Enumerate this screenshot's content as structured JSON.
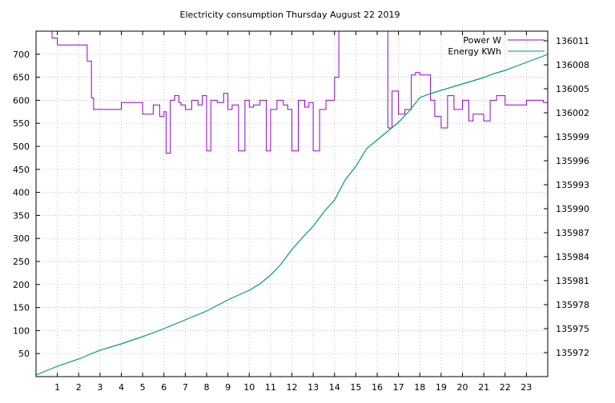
{
  "chart_data": {
    "type": "line",
    "title": "Electricity consumption Thursday August 22 2019",
    "xlabel": "",
    "ylabel": "",
    "y2label": "",
    "grid": true,
    "legend_position": "top-right",
    "x_range": [
      0,
      24
    ],
    "y_range": [
      0,
      750
    ],
    "y2_range": [
      135969,
      136012.2
    ],
    "x_ticks": [
      1,
      2,
      3,
      4,
      5,
      6,
      7,
      8,
      9,
      10,
      11,
      12,
      13,
      14,
      15,
      16,
      17,
      18,
      19,
      20,
      21,
      22,
      23
    ],
    "y_ticks": [
      50,
      100,
      150,
      200,
      250,
      300,
      350,
      400,
      450,
      500,
      550,
      600,
      650,
      700
    ],
    "y2_ticks": [
      135972,
      135975,
      135978,
      135981,
      135984,
      135987,
      135990,
      135993,
      135996,
      135999,
      136002,
      136005,
      136008,
      136011
    ],
    "colors": {
      "power": "#9400d3",
      "energy": "#009e73",
      "grid": "#a0a0a0"
    },
    "series": [
      {
        "name": "Power W",
        "axis": "left",
        "style": "step",
        "x": [
          0,
          0.75,
          1.0,
          1.5,
          2.0,
          2.4,
          2.6,
          2.7,
          3.0,
          3.5,
          4.0,
          4.5,
          5.0,
          5.5,
          5.8,
          6.0,
          6.1,
          6.3,
          6.5,
          6.7,
          6.8,
          7.0,
          7.3,
          7.6,
          7.8,
          8.0,
          8.2,
          8.5,
          8.8,
          9.0,
          9.2,
          9.5,
          9.8,
          10.0,
          10.2,
          10.5,
          10.8,
          11.0,
          11.3,
          11.6,
          11.8,
          12.0,
          12.3,
          12.6,
          12.8,
          13.0,
          13.3,
          13.6,
          13.9,
          14.0,
          14.2,
          16.3,
          16.5,
          16.7,
          17.0,
          17.3,
          17.6,
          17.8,
          18.0,
          18.5,
          18.7,
          19.0,
          19.3,
          19.6,
          20.0,
          20.3,
          20.5,
          21.0,
          21.3,
          21.6,
          22.0,
          22.5,
          22.7,
          23.0,
          23.2,
          23.5,
          23.8,
          24
        ],
        "y": [
          750,
          735,
          720,
          720,
          720,
          685,
          605,
          580,
          580,
          580,
          595,
          595,
          570,
          590,
          565,
          575,
          485,
          600,
          610,
          595,
          590,
          580,
          600,
          590,
          610,
          490,
          600,
          595,
          615,
          580,
          590,
          490,
          600,
          585,
          590,
          600,
          490,
          580,
          600,
          590,
          580,
          490,
          600,
          585,
          595,
          490,
          580,
          600,
          600,
          650,
          750,
          750,
          540,
          620,
          570,
          580,
          655,
          660,
          655,
          600,
          565,
          540,
          610,
          580,
          600,
          555,
          570,
          555,
          600,
          610,
          590,
          590,
          590,
          600,
          600,
          600,
          595,
          600
        ]
      },
      {
        "name": "Energy KWh",
        "axis": "right",
        "style": "line",
        "x": [
          0,
          1,
          2,
          3,
          4,
          5,
          6,
          7,
          8,
          9,
          10,
          10.5,
          11,
          11.5,
          12,
          12.5,
          13,
          13.5,
          14,
          14.5,
          15,
          15.5,
          16,
          16.5,
          17,
          17.5,
          18,
          18.5,
          19,
          19.5,
          20,
          20.5,
          21,
          21.5,
          22,
          22.5,
          23,
          23.5,
          24
        ],
        "y": [
          135969.2,
          135970.3,
          135971.2,
          135972.3,
          135973.1,
          135974.0,
          135975.0,
          135976.1,
          135977.2,
          135978.6,
          135979.8,
          135980.6,
          135981.7,
          135983.1,
          135984.9,
          135986.4,
          135987.8,
          135989.6,
          135991.1,
          135993.6,
          135995.3,
          135997.5,
          135998.6,
          135999.7,
          136000.8,
          136002.2,
          136003.9,
          136004.4,
          136004.8,
          136005.2,
          136005.6,
          136006.0,
          136006.4,
          136006.9,
          136007.3,
          136007.8,
          136008.3,
          136008.8,
          136009.3
        ]
      }
    ]
  }
}
